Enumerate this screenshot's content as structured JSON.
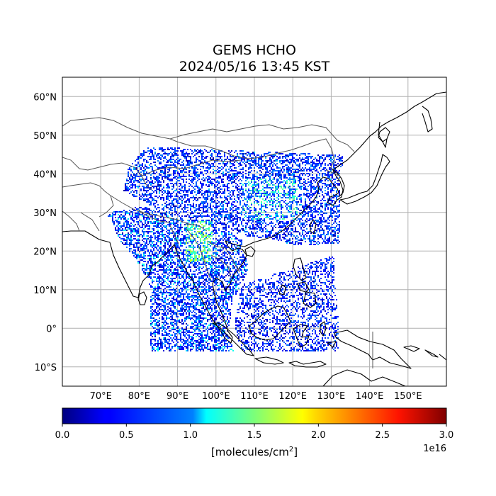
{
  "title": {
    "line1": "GEMS HCHO",
    "line2": "2024/05/16 13:45 KST"
  },
  "map": {
    "lon_range": [
      60,
      160
    ],
    "lat_range": [
      -15,
      65
    ],
    "lon_ticks": [
      {
        "value": 70,
        "label": "70°E"
      },
      {
        "value": 80,
        "label": "80°E"
      },
      {
        "value": 90,
        "label": "90°E"
      },
      {
        "value": 100,
        "label": "100°E"
      },
      {
        "value": 110,
        "label": "110°E"
      },
      {
        "value": 120,
        "label": "120°E"
      },
      {
        "value": 130,
        "label": "130°E"
      },
      {
        "value": 140,
        "label": "140°E"
      },
      {
        "value": 150,
        "label": "150°E"
      }
    ],
    "lat_ticks": [
      {
        "value": 60,
        "label": "60°N"
      },
      {
        "value": 50,
        "label": "50°N"
      },
      {
        "value": 40,
        "label": "40°N"
      },
      {
        "value": 30,
        "label": "30°N"
      },
      {
        "value": 20,
        "label": "20°N"
      },
      {
        "value": 10,
        "label": "10°N"
      },
      {
        "value": 0,
        "label": "0°"
      },
      {
        "value": -10,
        "label": "10°S"
      }
    ],
    "grid": true,
    "grid_color": "#b0b0b0",
    "coastline_color": "#000000",
    "border_color": "#555555"
  },
  "colorbar": {
    "colormap": "jet",
    "range": [
      0.0,
      3.0
    ],
    "ticks": [
      "0.0",
      "0.5",
      "1.0",
      "1.5",
      "2.0",
      "2.5",
      "3.0"
    ],
    "multiplier": "1e16",
    "label": "[molecules/cm",
    "label_sup": "2",
    "label_end": "]"
  }
}
